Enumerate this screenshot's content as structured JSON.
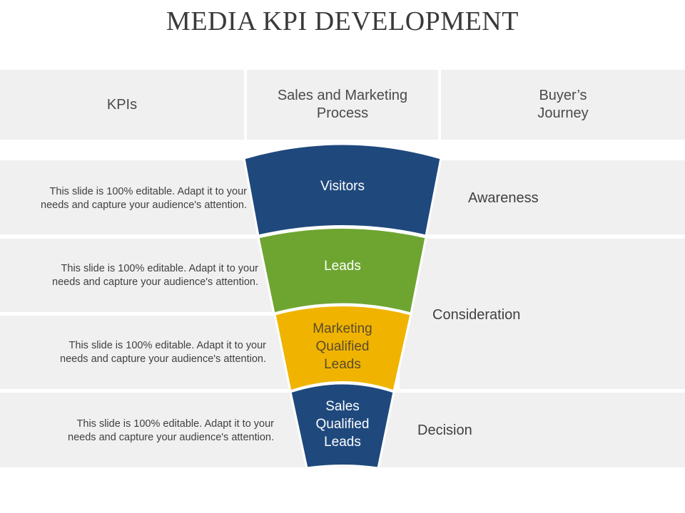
{
  "title": "MEDIA KPI DEVELOPMENT",
  "headers": {
    "kpis": "KPIs",
    "process": [
      "Sales and Marketing",
      "Process"
    ],
    "journey": [
      "Buyer’s",
      "Journey"
    ]
  },
  "rows": [
    {
      "description": [
        "This slide is 100% editable. Adapt it to your",
        "needs and capture your audience's attention."
      ],
      "funnel_label": [
        "Visitors"
      ],
      "color": "#1f497d"
    },
    {
      "description": [
        "This slide is 100% editable. Adapt it to your",
        "needs and capture your audience's attention."
      ],
      "funnel_label": [
        "Leads"
      ],
      "color": "#6ea531"
    },
    {
      "description": [
        "This slide is 100% editable. Adapt it to your",
        "needs and capture your audience's attention."
      ],
      "funnel_label": [
        "Marketing",
        "Qualified",
        "Leads"
      ],
      "color": "#f0b400"
    },
    {
      "description": [
        "This slide is 100% editable. Adapt it to your",
        "needs and capture your audience's attention."
      ],
      "funnel_label": [
        "Sales",
        "Qualified",
        "Leads"
      ],
      "color": "#1f497d"
    }
  ],
  "stages": {
    "awareness": "Awareness",
    "consideration": "Consideration",
    "decision": "Decision"
  },
  "text_colors": {
    "on_dark": "#ffffff",
    "on_yellow": "#5a4a2a"
  }
}
